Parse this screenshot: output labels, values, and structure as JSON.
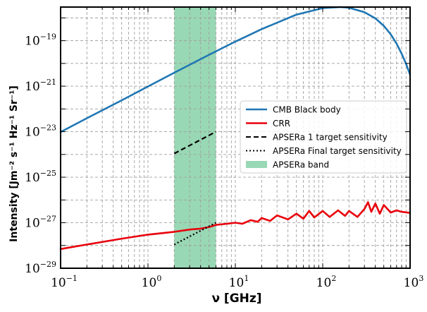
{
  "chart_data": {
    "type": "line",
    "title": "",
    "xlabel": "ν [GHz]",
    "ylabel": "Intensity [Jm⁻² s⁻¹ Hz⁻¹ Sr⁻¹]",
    "xscale": "log",
    "yscale": "log",
    "xlim": [
      0.1,
      1000
    ],
    "ylim": [
      1e-29,
      3e-18
    ],
    "x_ticks": [
      {
        "value": 0.1,
        "mantissa": "10",
        "exp": "−1"
      },
      {
        "value": 1,
        "mantissa": "10",
        "exp": "0"
      },
      {
        "value": 10,
        "mantissa": "10",
        "exp": "1"
      },
      {
        "value": 100,
        "mantissa": "10",
        "exp": "2"
      },
      {
        "value": 1000,
        "mantissa": "10",
        "exp": "3"
      }
    ],
    "y_ticks": [
      {
        "value": 1e-29,
        "mantissa": "10",
        "exp": "−29"
      },
      {
        "value": 1e-27,
        "mantissa": "10",
        "exp": "−27"
      },
      {
        "value": 1e-25,
        "mantissa": "10",
        "exp": "−25"
      },
      {
        "value": 1e-23,
        "mantissa": "10",
        "exp": "−23"
      },
      {
        "value": 1e-21,
        "mantissa": "10",
        "exp": "−21"
      },
      {
        "value": 1e-19,
        "mantissa": "10",
        "exp": "−19"
      }
    ],
    "grid": true,
    "legend_position": "center-right",
    "band": {
      "name": "APSERa band",
      "x_range": [
        2,
        6
      ],
      "color": "#99d8b4"
    },
    "series": [
      {
        "name": "CMB Black body",
        "color": "#1f77b4",
        "style": "solid",
        "x": [
          0.1,
          0.2,
          0.5,
          1,
          2,
          5,
          10,
          20,
          50,
          100,
          160,
          200,
          300,
          400,
          500,
          600,
          700,
          800,
          900,
          1000
        ],
        "y": [
          9.7e-24,
          3.9e-23,
          2.4e-22,
          9.7e-22,
          3.9e-21,
          2.4e-20,
          9.1e-20,
          3.2e-19,
          1.4e-18,
          2.7e-18,
          3e-18,
          2.8e-18,
          1.8e-18,
          9.6e-19,
          4.5e-19,
          1.9e-19,
          7.4e-20,
          2.7e-20,
          9.5e-21,
          3.2e-21
        ]
      },
      {
        "name": "CRR",
        "color": "#e8000b",
        "style": "solid",
        "x": [
          0.1,
          0.2,
          0.5,
          1,
          2,
          3,
          4,
          5,
          6,
          8,
          10,
          12,
          15,
          18,
          20,
          25,
          30,
          40,
          50,
          60,
          70,
          80,
          100,
          120,
          150,
          180,
          200,
          250,
          300,
          330,
          360,
          400,
          450,
          500,
          600,
          700,
          800,
          1000
        ],
        "y": [
          7e-29,
          1.1e-28,
          2e-28,
          3e-28,
          4e-28,
          5e-28,
          5.5e-28,
          6.5e-28,
          8e-28,
          9e-28,
          1e-27,
          9e-28,
          1.3e-27,
          1.1e-27,
          1.6e-27,
          1.2e-27,
          2.1e-27,
          1.4e-27,
          2.5e-27,
          1.5e-27,
          3.3e-27,
          1.7e-27,
          3.3e-27,
          1.8e-27,
          3.5e-27,
          2e-27,
          3.3e-27,
          1.8e-27,
          4e-27,
          8e-27,
          3e-27,
          7e-27,
          2.5e-27,
          6e-27,
          2.8e-27,
          3.5e-27,
          3e-27,
          2.7e-27
        ]
      },
      {
        "name": "APSERa 1 target sensitivity",
        "color": "#000000",
        "style": "dashed",
        "x": [
          2,
          6
        ],
        "y": [
          1.1e-24,
          1e-23
        ]
      },
      {
        "name": "APSERa Final target sensitivity",
        "color": "#000000",
        "style": "dotted",
        "x": [
          2,
          6
        ],
        "y": [
          1.1e-28,
          1e-27
        ]
      }
    ]
  }
}
